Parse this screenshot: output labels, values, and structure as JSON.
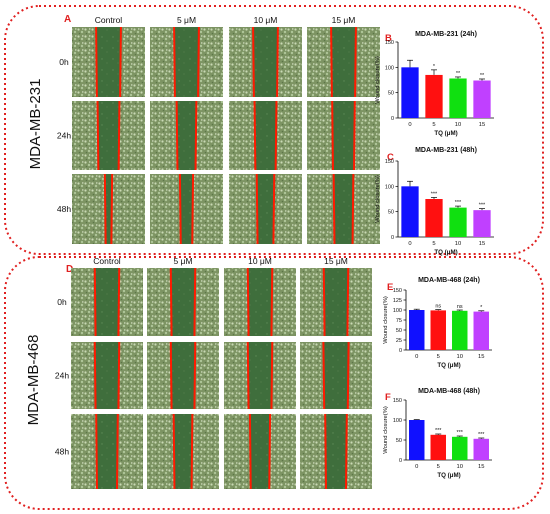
{
  "colors": {
    "border": "#e02020",
    "wound_line": "#ff1a00",
    "cells": "#7d9463",
    "gap": "#3f6e3c",
    "bar_control": "#1010ff",
    "bar_5": "#ff1010",
    "bar_10": "#10e010",
    "bar_15": "#c040ff"
  },
  "panel_top": {
    "letter": "A",
    "cell_line": "MDA-MB-231",
    "columns": [
      "Control",
      "5 μM",
      "10 μM",
      "15 μM"
    ],
    "rows": [
      "0h",
      "24h",
      "48h"
    ],
    "gap_fraction": [
      [
        0.34,
        0.34,
        0.34,
        0.34
      ],
      [
        0.3,
        0.27,
        0.3,
        0.31
      ],
      [
        0.1,
        0.18,
        0.24,
        0.27
      ]
    ]
  },
  "panel_bottom": {
    "letter": "D",
    "cell_line": "MDA-MB-468",
    "columns": [
      "Control",
      "5 μM",
      "10 μM",
      "15 μM"
    ],
    "rows": [
      "0h",
      "24h",
      "48h"
    ],
    "gap_fraction": [
      [
        0.34,
        0.34,
        0.34,
        0.34
      ],
      [
        0.34,
        0.34,
        0.34,
        0.35
      ],
      [
        0.3,
        0.26,
        0.28,
        0.3
      ]
    ]
  },
  "chart_data": [
    {
      "letter": "B",
      "type": "bar",
      "title": "MDA-MB-231 (24h)",
      "categories": [
        "0",
        "5",
        "10",
        "15"
      ],
      "values": [
        100,
        85,
        78,
        74
      ],
      "errors": [
        14,
        10,
        3,
        3
      ],
      "significance": [
        "",
        "*",
        "**",
        "**"
      ],
      "xlabel": "TQ (μM)",
      "ylabel": "Wound closure(%)",
      "ylim": [
        0,
        150
      ],
      "yticks": [
        0,
        50,
        100,
        150
      ]
    },
    {
      "letter": "C",
      "type": "bar",
      "title": "MDA-MB-231 (48h)",
      "categories": [
        "0",
        "5",
        "10",
        "15"
      ],
      "values": [
        100,
        75,
        58,
        53
      ],
      "errors": [
        10,
        3,
        3,
        3
      ],
      "significance": [
        "",
        "***",
        "***",
        "***"
      ],
      "xlabel": "TQ (μM)",
      "ylabel": "Wound closure(%)",
      "ylim": [
        0,
        150
      ],
      "yticks": [
        0,
        50,
        100,
        150
      ]
    },
    {
      "letter": "E",
      "type": "bar",
      "title": "MDA-MB-468 (24h)",
      "categories": [
        "0",
        "5",
        "10",
        "15"
      ],
      "values": [
        100,
        99,
        98,
        96
      ],
      "errors": [
        2,
        2,
        2,
        2
      ],
      "significance": [
        "",
        "ns",
        "ns",
        "*"
      ],
      "xlabel": "TQ (μM)",
      "ylabel": "Wound closure(%)",
      "ylim": [
        0,
        150
      ],
      "yticks": [
        0,
        25,
        50,
        75,
        100,
        125,
        150
      ]
    },
    {
      "letter": "F",
      "type": "bar",
      "title": "MDA-MB-468 (48h)",
      "categories": [
        "0",
        "5",
        "10",
        "15"
      ],
      "values": [
        100,
        63,
        58,
        53
      ],
      "errors": [
        1,
        2,
        2,
        2
      ],
      "significance": [
        "",
        "***",
        "***",
        "***"
      ],
      "xlabel": "TQ (μM)",
      "ylabel": "Wound closure(%)",
      "ylim": [
        0,
        150
      ],
      "yticks": [
        0,
        50,
        100,
        150
      ]
    }
  ]
}
